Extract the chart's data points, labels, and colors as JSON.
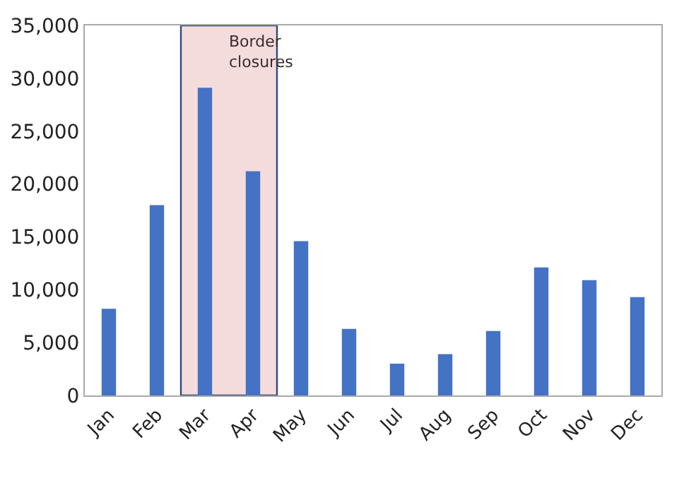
{
  "chart_data": {
    "type": "bar",
    "categories": [
      "Jan",
      "Feb",
      "Mar",
      "Apr",
      "May",
      "Jun",
      "Jul",
      "Aug",
      "Sep",
      "Oct",
      "Nov",
      "Dec"
    ],
    "values": [
      8200,
      18000,
      29100,
      21200,
      14600,
      6300,
      3000,
      3900,
      6100,
      12100,
      10900,
      9300
    ],
    "color": "#4472c4",
    "ylim": [
      0,
      35000
    ],
    "yticks": [
      {
        "value": 0,
        "label": "0"
      },
      {
        "value": 5000,
        "label": "5,000"
      },
      {
        "value": 10000,
        "label": "10,000"
      },
      {
        "value": 15000,
        "label": "15,000"
      },
      {
        "value": 20000,
        "label": "20,000"
      },
      {
        "value": 25000,
        "label": "25,000"
      },
      {
        "value": 30000,
        "label": "30,000"
      },
      {
        "value": 35000,
        "label": "35,000"
      }
    ],
    "bands": [
      {
        "axis": "x",
        "from": "Mar",
        "to": "Apr",
        "label": "Border\nclosures",
        "color": "#f4dcdc"
      }
    ]
  }
}
